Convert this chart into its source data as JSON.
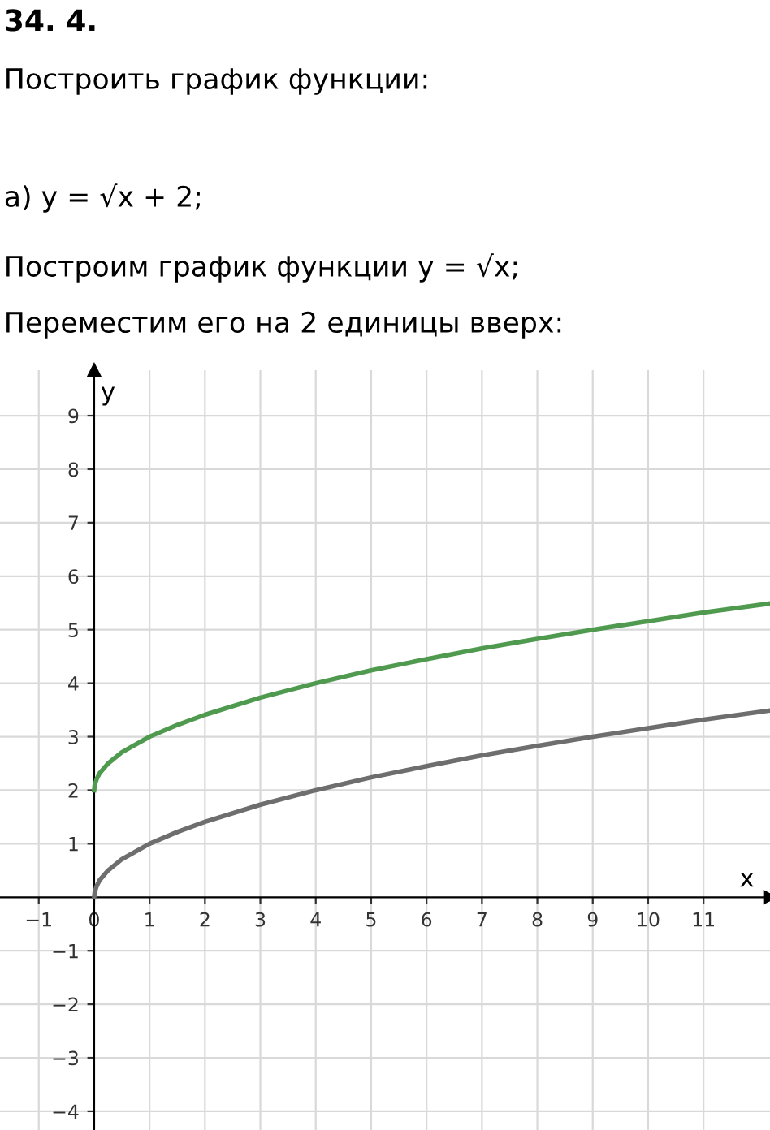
{
  "chart_data": {
    "type": "line",
    "title": "34. 4.",
    "annotations": [
      "Построить график функции:",
      "а) y = √x + 2;",
      "Построим график функции y = √x;",
      "Переместим его на 2 единицы вверх:"
    ],
    "xlabel": "x",
    "ylabel": "y",
    "x": [
      0,
      0.01,
      0.05,
      0.1,
      0.25,
      0.5,
      1,
      1.5,
      2,
      3,
      4,
      5,
      6,
      7,
      8,
      9,
      10,
      11,
      12.2
    ],
    "series": [
      {
        "color": "#6e6e6e",
        "values": [
          0,
          0.1,
          0.22,
          0.32,
          0.5,
          0.71,
          1,
          1.22,
          1.41,
          1.73,
          2,
          2.24,
          2.45,
          2.65,
          2.83,
          3,
          3.16,
          3.32,
          3.49
        ]
      },
      {
        "color": "#4f9a4f",
        "values": [
          2,
          2.1,
          2.22,
          2.32,
          2.5,
          2.71,
          3,
          3.22,
          3.41,
          3.73,
          4,
          4.24,
          4.45,
          4.65,
          4.83,
          5,
          5.16,
          5.32,
          5.49
        ]
      }
    ],
    "xlim": [
      -1.7,
      12.2
    ],
    "ylim": [
      -4.35,
      9.85
    ],
    "xticks": [
      {
        "value": -1,
        "label": "−1"
      },
      0,
      1,
      2,
      3,
      4,
      5,
      6,
      7,
      8,
      9,
      10,
      11
    ],
    "yticks": [
      {
        "value": -4,
        "label": "−4"
      },
      {
        "value": -3,
        "label": "−3"
      },
      {
        "value": -2,
        "label": "−2"
      },
      {
        "value": -1,
        "label": "−1"
      },
      1,
      2,
      3,
      4,
      5,
      6,
      7,
      8,
      9
    ],
    "grid": true,
    "line_style": "solid",
    "marker": "none"
  }
}
